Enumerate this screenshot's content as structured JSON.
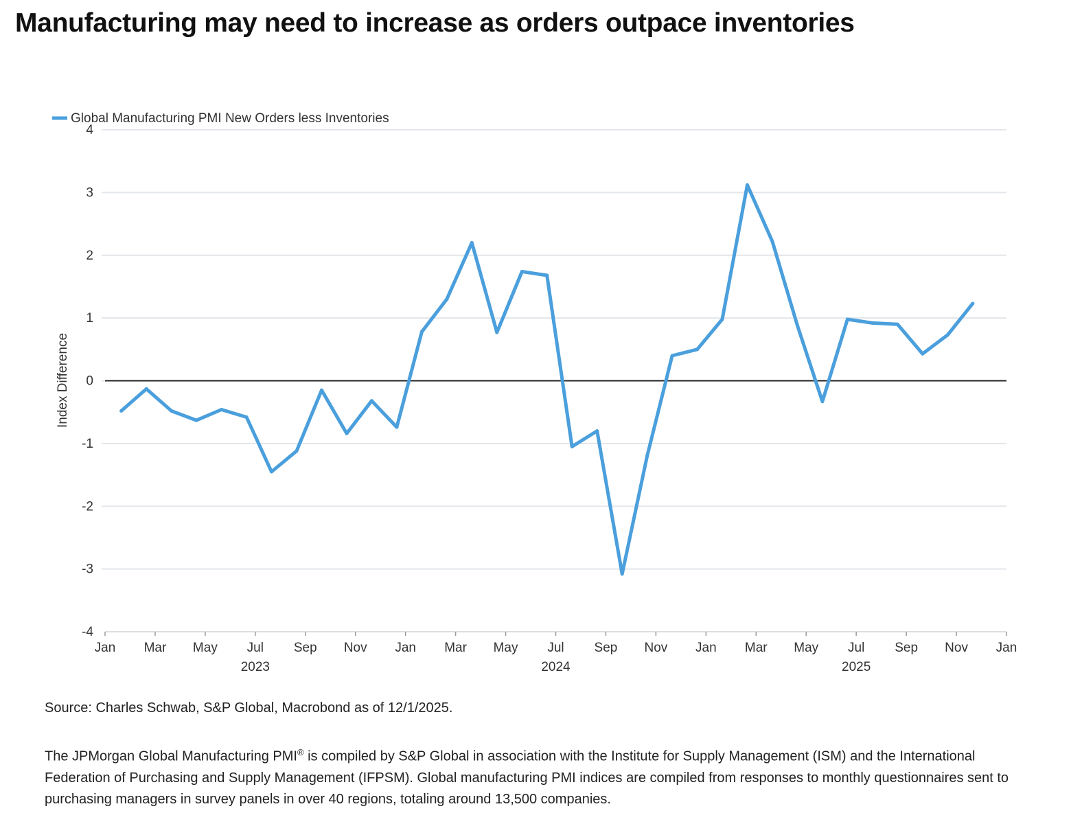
{
  "title": "Manufacturing may need to increase as orders outpace inventories",
  "source": "Source: Charles Schwab, S&P Global, Macrobond as of 12/1/2025.",
  "description": {
    "part1": "The JPMorgan Global Manufacturing PMI",
    "sup": "®",
    "part2": " is compiled by S&P Global in association with the Institute for Supply Management (ISM) and the International Federation of Purchasing and Supply Management (IFPSM). Global manufacturing PMI indices are compiled from responses to monthly questionnaires sent to purchasing managers in survey panels in over 40 regions, totaling around 13,500 companies."
  },
  "chart_data": {
    "type": "line",
    "title": "",
    "xlabel": "",
    "ylabel": "Index Difference",
    "ylim": [
      -4,
      4
    ],
    "yticks": [
      -4,
      -3,
      -2,
      -1,
      0,
      1,
      2,
      3,
      4
    ],
    "xlim": [
      "2023-01",
      "2026-01"
    ],
    "xticks": [
      {
        "date": "2023-01",
        "label": "Jan"
      },
      {
        "date": "2023-03",
        "label": "Mar"
      },
      {
        "date": "2023-05",
        "label": "May"
      },
      {
        "date": "2023-07",
        "label": "Jul"
      },
      {
        "date": "2023-09",
        "label": "Sep"
      },
      {
        "date": "2023-11",
        "label": "Nov"
      },
      {
        "date": "2024-01",
        "label": "Jan"
      },
      {
        "date": "2024-03",
        "label": "Mar"
      },
      {
        "date": "2024-05",
        "label": "May"
      },
      {
        "date": "2024-07",
        "label": "Jul"
      },
      {
        "date": "2024-09",
        "label": "Sep"
      },
      {
        "date": "2024-11",
        "label": "Nov"
      },
      {
        "date": "2025-01",
        "label": "Jan"
      },
      {
        "date": "2025-03",
        "label": "Mar"
      },
      {
        "date": "2025-05",
        "label": "May"
      },
      {
        "date": "2025-07",
        "label": "Jul"
      },
      {
        "date": "2025-09",
        "label": "Sep"
      },
      {
        "date": "2025-11",
        "label": "Nov"
      },
      {
        "date": "2026-01",
        "label": "Jan"
      }
    ],
    "year_labels": [
      {
        "date": "2023-07",
        "label": "2023"
      },
      {
        "date": "2024-07",
        "label": "2024"
      },
      {
        "date": "2025-07",
        "label": "2025"
      }
    ],
    "zero_line": true,
    "grid": true,
    "legend_position": "top-left",
    "series": [
      {
        "name": "Global Manufacturing PMI New Orders less Inventories",
        "color": "#4a9fdc",
        "points": [
          {
            "x": "2023-01",
            "y": -0.48
          },
          {
            "x": "2023-02",
            "y": -0.13
          },
          {
            "x": "2023-03",
            "y": -0.48
          },
          {
            "x": "2023-04",
            "y": -0.63
          },
          {
            "x": "2023-05",
            "y": -0.46
          },
          {
            "x": "2023-06",
            "y": -0.58
          },
          {
            "x": "2023-07",
            "y": -1.45
          },
          {
            "x": "2023-08",
            "y": -1.12
          },
          {
            "x": "2023-09",
            "y": -0.15
          },
          {
            "x": "2023-10",
            "y": -0.84
          },
          {
            "x": "2023-11",
            "y": -0.32
          },
          {
            "x": "2023-12",
            "y": -0.74
          },
          {
            "x": "2024-01",
            "y": 0.78
          },
          {
            "x": "2024-02",
            "y": 1.3
          },
          {
            "x": "2024-03",
            "y": 2.2
          },
          {
            "x": "2024-04",
            "y": 0.77
          },
          {
            "x": "2024-05",
            "y": 1.74
          },
          {
            "x": "2024-06",
            "y": 1.68
          },
          {
            "x": "2024-07",
            "y": -1.05
          },
          {
            "x": "2024-08",
            "y": -0.8
          },
          {
            "x": "2024-09",
            "y": -3.08
          },
          {
            "x": "2024-10",
            "y": -1.2
          },
          {
            "x": "2024-11",
            "y": 0.4
          },
          {
            "x": "2024-12",
            "y": 0.5
          },
          {
            "x": "2025-01",
            "y": 0.98
          },
          {
            "x": "2025-02",
            "y": 3.12
          },
          {
            "x": "2025-03",
            "y": 2.22
          },
          {
            "x": "2025-04",
            "y": 0.88
          },
          {
            "x": "2025-05",
            "y": -0.33
          },
          {
            "x": "2025-06",
            "y": 0.98
          },
          {
            "x": "2025-07",
            "y": 0.92
          },
          {
            "x": "2025-08",
            "y": 0.9
          },
          {
            "x": "2025-09",
            "y": 0.43
          },
          {
            "x": "2025-10",
            "y": 0.73
          },
          {
            "x": "2025-11",
            "y": 1.23
          }
        ]
      }
    ]
  }
}
